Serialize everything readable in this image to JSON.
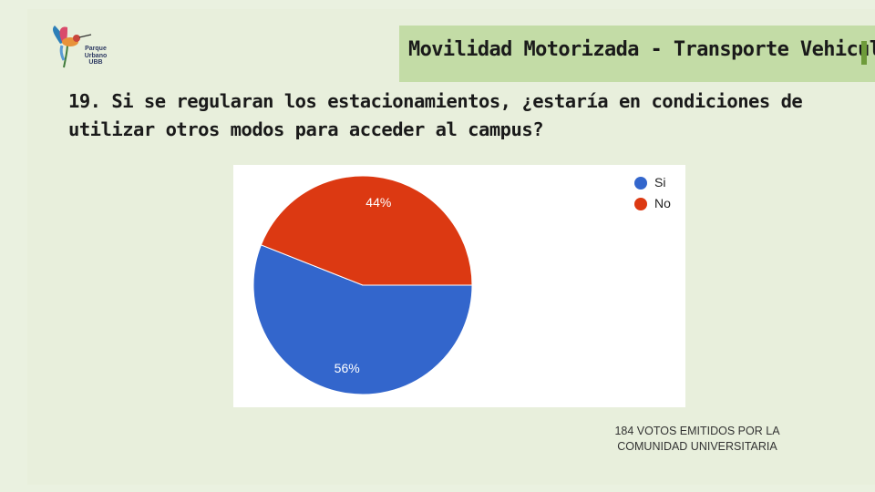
{
  "header": {
    "section_title": "Movilidad Motorizada - Transporte Vehicular"
  },
  "logo": {
    "lines": [
      "Parque",
      "Urbano",
      "UBB"
    ]
  },
  "question": {
    "text": "19. Si se regularan los estacionamientos, ¿estaría en condiciones de utilizar otros modos para acceder al campus?"
  },
  "chart_data": {
    "type": "pie",
    "categories": [
      "Si",
      "No"
    ],
    "values": [
      56,
      44
    ],
    "value_labels": [
      "56%",
      "44%"
    ],
    "colors": [
      "#3366cc",
      "#dc3912"
    ],
    "legend_position": "top-right"
  },
  "footnote": {
    "line1": "184  Votos emitidos por la",
    "line2": "comunidad universitaria"
  }
}
